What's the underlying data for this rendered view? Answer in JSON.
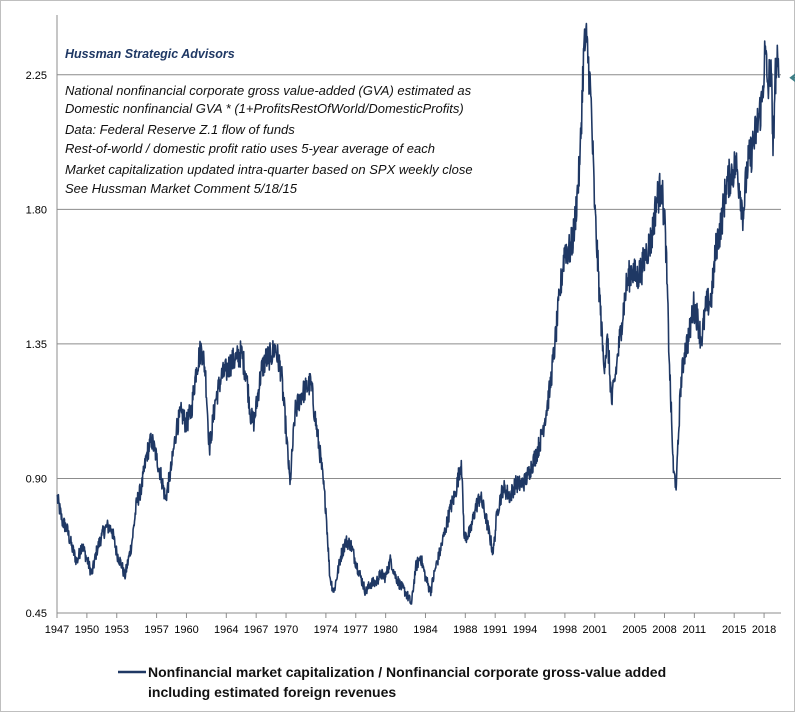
{
  "chart_data": {
    "type": "line",
    "title": "",
    "brand": "Hussman Strategic Advisors",
    "notes": [
      "National nonfinancial corporate gross value-added (GVA) estimated as",
      "Domestic nonfinancial GVA * (1+ProfitsRestOfWorld/DomesticProfits)",
      "Data: Federal Reserve Z.1 flow of funds",
      "Rest-of-world / domestic profit ratio uses 5-year average of each",
      "Market capitalization updated intra-quarter  based on SPX weekly close",
      "See Hussman Market Comment 5/18/15"
    ],
    "xlabel": "",
    "ylabel": "",
    "xlim": [
      1947,
      2019.7
    ],
    "ylim": [
      0.45,
      2.45
    ],
    "y_ticks": [
      0.45,
      0.9,
      1.35,
      1.8,
      2.25
    ],
    "y_tick_labels": [
      "0.45",
      "0.90",
      "1.35",
      "1.80",
      "2.25"
    ],
    "x_ticks": [
      1947,
      1950,
      1953,
      1957,
      1960,
      1964,
      1967,
      1970,
      1974,
      1977,
      1980,
      1984,
      1988,
      1991,
      1994,
      1998,
      2001,
      2005,
      2008,
      2011,
      2015,
      2018
    ],
    "grid": "horizontal",
    "legend_position": "bottom",
    "annotation": "arrow-left at latest value",
    "arrow_value": 2.24,
    "series": [
      {
        "name": "Nonfinancial market capitalization / Nonfinancial corporate gross-value added including estimated foreign revenues",
        "legend_lines": [
          "Nonfinancial market capitalization / Nonfinancial corporate gross-value added",
          "including estimated foreign revenues"
        ],
        "color": "#1f3864",
        "x": [
          1947.0,
          1947.5,
          1948.0,
          1948.5,
          1949.0,
          1949.5,
          1950.0,
          1950.5,
          1951.0,
          1951.5,
          1952.0,
          1952.5,
          1953.0,
          1953.5,
          1953.8,
          1954.5,
          1955.0,
          1955.5,
          1956.0,
          1956.5,
          1957.0,
          1957.5,
          1957.9,
          1958.5,
          1959.0,
          1959.5,
          1960.0,
          1960.5,
          1961.0,
          1961.5,
          1961.9,
          1962.3,
          1962.5,
          1962.9,
          1963.5,
          1964.0,
          1964.5,
          1965.0,
          1965.5,
          1966.0,
          1966.5,
          1966.8,
          1967.5,
          1968.0,
          1968.5,
          1968.9,
          1969.5,
          1970.0,
          1970.4,
          1970.9,
          1971.5,
          1972.0,
          1972.5,
          1972.9,
          1973.5,
          1974.0,
          1974.4,
          1974.8,
          1975.5,
          1976.0,
          1976.5,
          1977.0,
          1977.5,
          1978.0,
          1978.5,
          1979.0,
          1979.5,
          1980.0,
          1980.5,
          1980.9,
          1981.5,
          1982.0,
          1982.6,
          1983.0,
          1983.5,
          1984.0,
          1984.5,
          1985.0,
          1985.5,
          1986.0,
          1986.5,
          1987.0,
          1987.6,
          1987.9,
          1988.5,
          1989.0,
          1989.5,
          1990.0,
          1990.8,
          1991.2,
          1991.8,
          1992.5,
          1993.0,
          1993.5,
          1994.0,
          1994.5,
          1995.0,
          1995.5,
          1996.0,
          1996.5,
          1997.0,
          1997.5,
          1998.0,
          1998.5,
          1998.9,
          1999.5,
          1999.9,
          2000.2,
          2000.6,
          2001.0,
          2001.5,
          2001.9,
          2002.3,
          2002.7,
          2003.2,
          2003.7,
          2004.2,
          2004.7,
          2005.2,
          2005.7,
          2006.2,
          2006.7,
          2007.2,
          2007.7,
          2008.1,
          2008.5,
          2008.9,
          2009.2,
          2009.6,
          2010.0,
          2010.5,
          2010.9,
          2011.3,
          2011.7,
          2012.2,
          2012.7,
          2013.2,
          2013.7,
          2014.2,
          2014.7,
          2015.2,
          2015.6,
          2015.9,
          2016.3,
          2016.8,
          2017.3,
          2017.8,
          2018.1,
          2018.4,
          2018.7,
          2018.9,
          2019.1,
          2019.3,
          2019.5
        ],
        "values": [
          0.84,
          0.76,
          0.73,
          0.67,
          0.62,
          0.68,
          0.63,
          0.58,
          0.66,
          0.71,
          0.74,
          0.73,
          0.65,
          0.61,
          0.57,
          0.68,
          0.82,
          0.87,
          0.98,
          1.03,
          0.97,
          0.9,
          0.83,
          0.94,
          1.07,
          1.12,
          1.08,
          1.13,
          1.27,
          1.34,
          1.26,
          1.0,
          1.05,
          1.16,
          1.24,
          1.26,
          1.29,
          1.3,
          1.32,
          1.25,
          1.1,
          1.09,
          1.26,
          1.3,
          1.31,
          1.34,
          1.26,
          1.06,
          0.88,
          1.12,
          1.18,
          1.2,
          1.22,
          1.11,
          0.96,
          0.8,
          0.57,
          0.52,
          0.64,
          0.69,
          0.68,
          0.62,
          0.57,
          0.52,
          0.55,
          0.55,
          0.58,
          0.57,
          0.63,
          0.58,
          0.54,
          0.52,
          0.48,
          0.6,
          0.64,
          0.57,
          0.52,
          0.6,
          0.66,
          0.73,
          0.8,
          0.85,
          0.96,
          0.7,
          0.72,
          0.8,
          0.84,
          0.78,
          0.65,
          0.79,
          0.87,
          0.84,
          0.88,
          0.88,
          0.89,
          0.93,
          0.97,
          1.02,
          1.1,
          1.2,
          1.35,
          1.52,
          1.67,
          1.66,
          1.72,
          1.95,
          2.34,
          2.36,
          2.18,
          1.8,
          1.5,
          1.28,
          1.36,
          1.15,
          1.28,
          1.42,
          1.55,
          1.6,
          1.57,
          1.6,
          1.66,
          1.7,
          1.83,
          1.88,
          1.72,
          1.28,
          0.92,
          0.88,
          1.2,
          1.32,
          1.38,
          1.48,
          1.44,
          1.36,
          1.48,
          1.5,
          1.68,
          1.75,
          1.88,
          1.92,
          1.95,
          1.86,
          1.78,
          1.94,
          2.0,
          2.08,
          2.16,
          2.33,
          2.2,
          2.3,
          1.98,
          2.24,
          2.28,
          2.24
        ]
      }
    ]
  }
}
